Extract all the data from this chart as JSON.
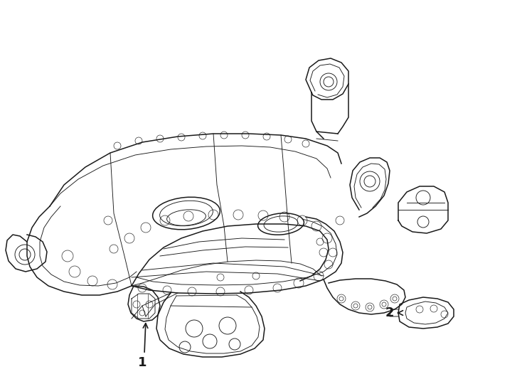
{
  "background_color": "#ffffff",
  "line_color": "#1a1a1a",
  "label1": "1",
  "label2": "2",
  "figsize": [
    7.34,
    5.4
  ],
  "dpi": 100,
  "font_size_labels": 13,
  "lw_main": 1.1,
  "lw_detail": 0.65,
  "lw_thin": 0.45
}
